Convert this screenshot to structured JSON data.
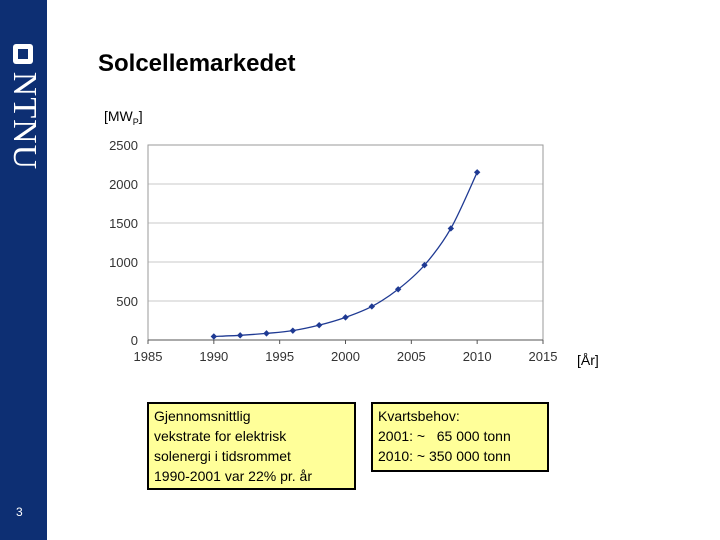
{
  "slide": {
    "title": "Solcellemarkedet",
    "page_number": "3"
  },
  "logo": {
    "text": "NTNU"
  },
  "axis_labels": {
    "y_unit_main": "[MW",
    "y_unit_sub": "P",
    "y_unit_close": "]",
    "x_unit": "[År]"
  },
  "notes": {
    "growth": [
      "Gjennomsnittlig",
      "vekstrate for elektrisk",
      "solenergi i tidsrommet",
      "1990-2001 var 22% pr. år"
    ],
    "quartz": [
      "Kvartsbehov:",
      "2001: ~   65 000 tonn",
      "2010: ~ 350 000 tonn"
    ]
  },
  "colors": {
    "sidebar": "#0d2f73",
    "series": "#1f3a93",
    "note_background": "#ffff99"
  },
  "chart_data": {
    "type": "line",
    "xlabel": "",
    "ylabel": "",
    "xlim": [
      1985,
      2015
    ],
    "ylim": [
      0,
      2500
    ],
    "x_ticks": [
      1985,
      1990,
      1995,
      2000,
      2005,
      2010,
      2015
    ],
    "y_ticks": [
      0,
      500,
      1000,
      1500,
      2000,
      2500
    ],
    "grid": "horizontal",
    "legend": "none",
    "series": [
      {
        "x": [
          1990,
          1992,
          1994,
          1996,
          1998,
          2000,
          2002,
          2004,
          2006,
          2008,
          2010
        ],
        "y": [
          45,
          60,
          85,
          120,
          190,
          290,
          430,
          650,
          960,
          1430,
          2150
        ]
      }
    ]
  }
}
